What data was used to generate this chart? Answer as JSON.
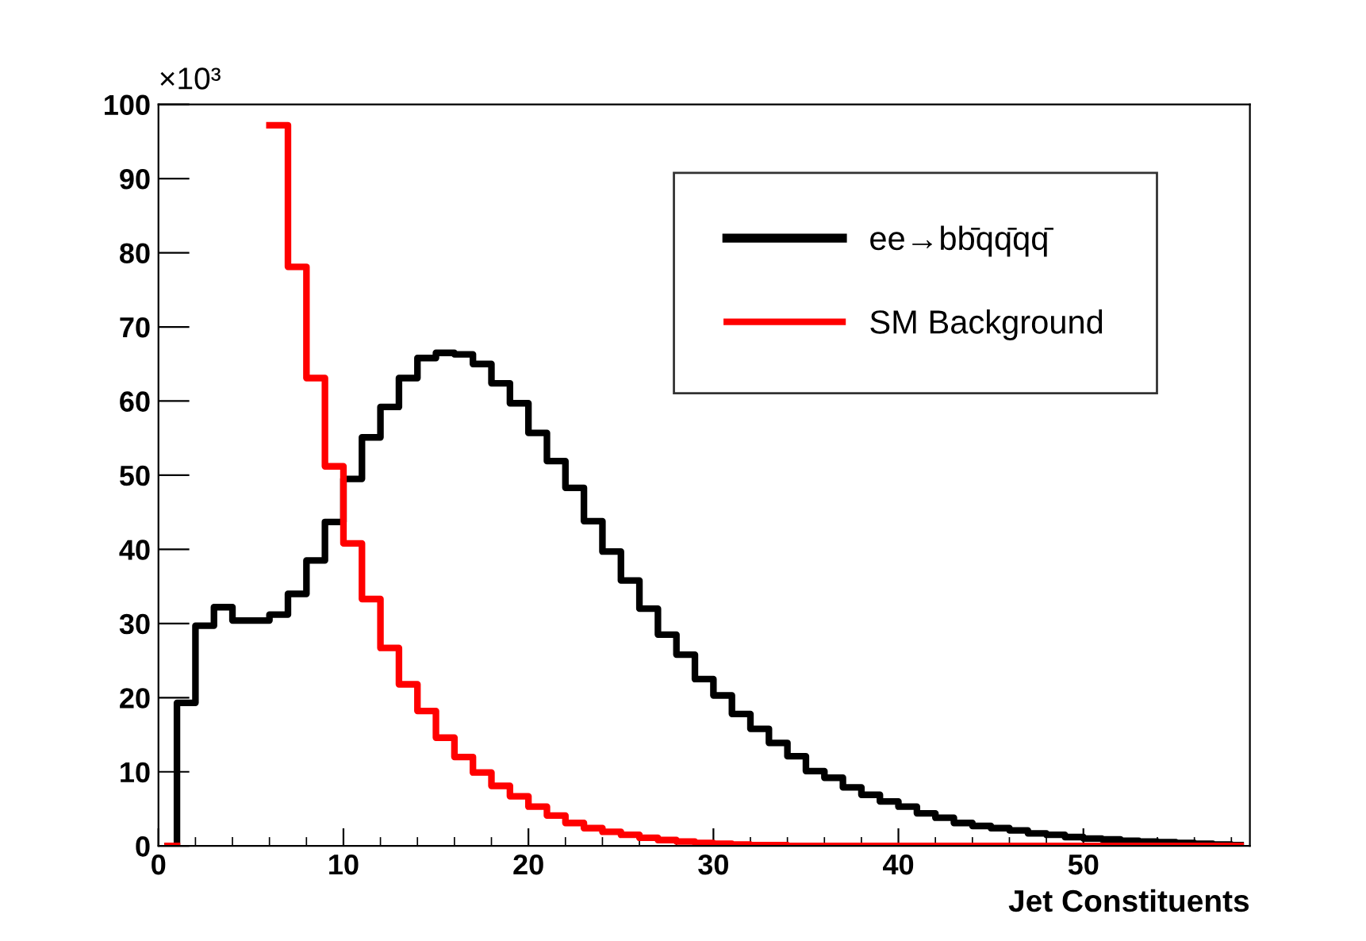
{
  "chart_data": {
    "type": "step",
    "xlabel": "Jet Constituents",
    "annotations": [
      "×10³"
    ],
    "x": [
      0.5,
      1.5,
      2.5,
      3.5,
      4.5,
      5.5,
      6.5,
      7.5,
      8.5,
      9.5,
      10.5,
      11.5,
      12.5,
      13.5,
      14.5,
      15.5,
      16.5,
      17.5,
      18.5,
      19.5,
      20.5,
      21.5,
      22.5,
      23.5,
      24.5,
      25.5,
      26.5,
      27.5,
      28.5,
      29.5,
      30.5,
      31.5,
      32.5,
      33.5,
      34.5,
      35.5,
      36.5,
      37.5,
      38.5,
      39.5,
      40.5,
      41.5,
      42.5,
      43.5,
      44.5,
      45.5,
      46.5,
      47.5,
      48.5,
      49.5,
      50.5,
      51.5,
      52.5,
      53.5,
      54.5,
      55.5,
      56.5,
      57.5,
      58.5
    ],
    "series": [
      {
        "name": "ee→bb̄qq̄qq̄",
        "color": "#000000",
        "values": [
          0,
          19.3,
          29.7,
          32.2,
          30.4,
          30.4,
          31.2,
          34.0,
          38.5,
          43.7,
          49.5,
          55.1,
          59.2,
          63.1,
          65.8,
          66.5,
          66.3,
          65.0,
          62.4,
          59.7,
          55.7,
          51.9,
          48.3,
          43.8,
          39.7,
          35.8,
          32.0,
          28.5,
          25.8,
          22.5,
          20.3,
          17.8,
          15.8,
          13.9,
          12.1,
          10.1,
          9.2,
          7.9,
          6.9,
          6.0,
          5.3,
          4.4,
          3.8,
          3.1,
          2.7,
          2.4,
          2.1,
          1.7,
          1.5,
          1.2,
          1.0,
          0.9,
          0.7,
          0.6,
          0.5,
          0.4,
          0.3,
          0.2,
          0.1
        ]
      },
      {
        "name": "SM Background",
        "color": "#ff0000",
        "values": [
          0,
          null,
          null,
          null,
          null,
          null,
          97.2,
          78.1,
          63.1,
          51.2,
          40.8,
          33.3,
          26.7,
          21.8,
          18.2,
          14.6,
          12.0,
          9.9,
          8.1,
          6.7,
          5.3,
          4.1,
          3.1,
          2.4,
          1.9,
          1.5,
          1.1,
          0.8,
          0.6,
          0.4,
          0.3,
          0.2,
          0.1,
          0.1,
          0,
          0,
          0,
          0,
          0,
          0,
          0,
          0,
          0,
          0,
          0,
          0,
          0,
          0,
          0,
          0,
          0,
          0,
          0,
          0,
          0,
          0,
          0,
          0,
          0
        ]
      }
    ],
    "xlim": [
      0,
      59
    ],
    "xticks": [
      0,
      10,
      20,
      30,
      40,
      50
    ],
    "ylim": [
      0,
      100
    ],
    "yticks": [
      0,
      10,
      20,
      30,
      40,
      50,
      60,
      70,
      80,
      90,
      100
    ],
    "grid": false,
    "legend": "top right",
    "line_style": "solid"
  }
}
